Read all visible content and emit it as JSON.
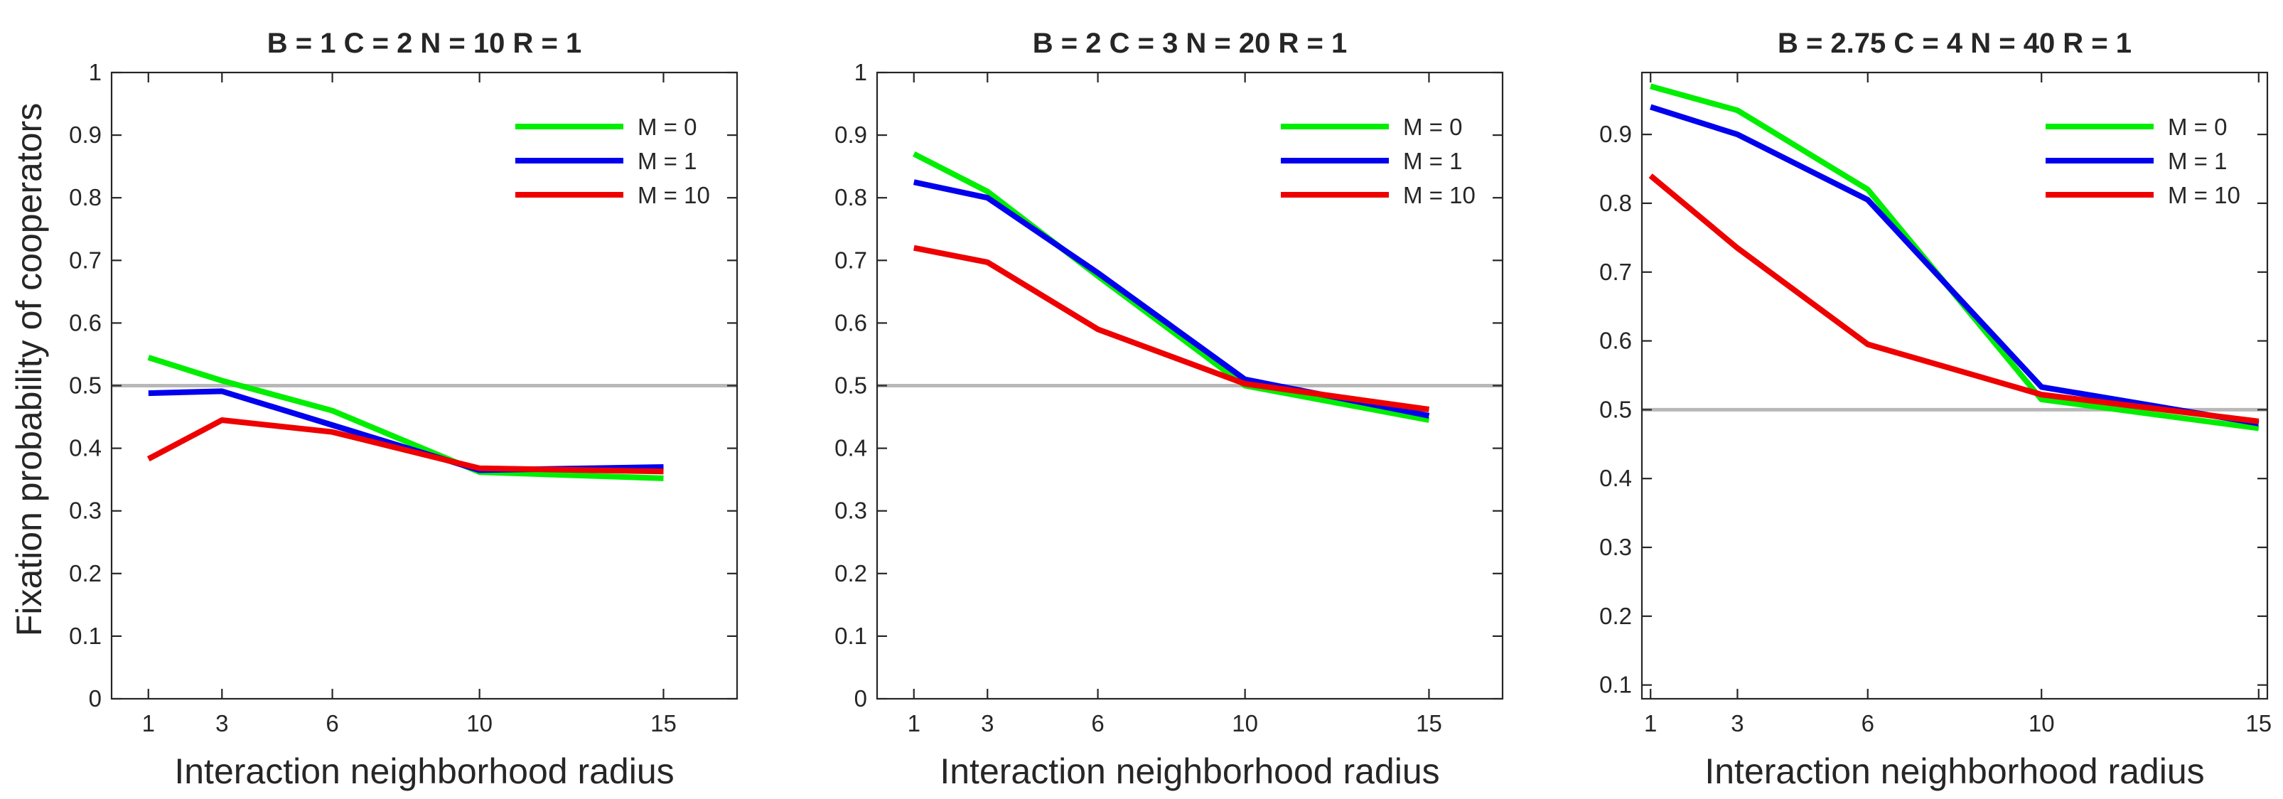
{
  "figure": {
    "ylabel": "Fixation probability of cooperators",
    "reference_line": 0.5
  },
  "chart_data": [
    {
      "type": "line",
      "title": "B = 1   C = 2   N = 10   R = 1",
      "xlabel": "Interaction neighborhood radius",
      "ylabel": "Fixation probability of cooperators",
      "xlim": [
        0,
        17
      ],
      "ylim": [
        0,
        1
      ],
      "x": [
        1,
        3,
        6,
        10,
        15
      ],
      "xticks": [
        1,
        3,
        6,
        10,
        15
      ],
      "yticks": [
        0,
        0.1,
        0.2,
        0.3,
        0.4,
        0.5,
        0.6,
        0.7,
        0.8,
        0.9,
        1
      ],
      "ytick_labels": [
        "0",
        "0.1",
        "0.2",
        "0.3",
        "0.4",
        "0.5",
        "0.6",
        "0.7",
        "0.8",
        "0.9",
        "1"
      ],
      "legend_position": "top-right",
      "series": [
        {
          "name": "M = 0",
          "color": "#00ee00",
          "values": [
            0.545,
            0.508,
            0.46,
            0.362,
            0.352
          ]
        },
        {
          "name": "M = 1",
          "color": "#0000ee",
          "values": [
            0.488,
            0.491,
            0.437,
            0.365,
            0.37
          ]
        },
        {
          "name": "M = 10",
          "color": "#ee0000",
          "values": [
            0.383,
            0.445,
            0.426,
            0.368,
            0.363
          ]
        }
      ]
    },
    {
      "type": "line",
      "title": "B = 2   C = 3   N = 20   R = 1",
      "xlabel": "Interaction neighborhood radius",
      "ylabel": "",
      "xlim": [
        0,
        17
      ],
      "ylim": [
        0,
        1
      ],
      "x": [
        1,
        3,
        6,
        10,
        15
      ],
      "xticks": [
        1,
        3,
        6,
        10,
        15
      ],
      "yticks": [
        0,
        0.1,
        0.2,
        0.3,
        0.4,
        0.5,
        0.6,
        0.7,
        0.8,
        0.9,
        1
      ],
      "ytick_labels": [
        "0",
        "0.1",
        "0.2",
        "0.3",
        "0.4",
        "0.5",
        "0.6",
        "0.7",
        "0.8",
        "0.9",
        "1"
      ],
      "legend_position": "top-right",
      "series": [
        {
          "name": "M = 0",
          "color": "#00ee00",
          "values": [
            0.87,
            0.81,
            0.675,
            0.5,
            0.445
          ]
        },
        {
          "name": "M = 1",
          "color": "#0000ee",
          "values": [
            0.825,
            0.8,
            0.68,
            0.51,
            0.452
          ]
        },
        {
          "name": "M = 10",
          "color": "#ee0000",
          "values": [
            0.72,
            0.697,
            0.59,
            0.503,
            0.462
          ]
        }
      ]
    },
    {
      "type": "line",
      "title": "B = 2.75   C = 4   N = 40   R = 1",
      "xlabel": "Interaction neighborhood radius",
      "ylabel": "",
      "xlim": [
        0.8,
        15.2
      ],
      "ylim": [
        0.08,
        0.99
      ],
      "x": [
        1,
        3,
        6,
        10,
        15
      ],
      "xticks": [
        1,
        3,
        6,
        10,
        15
      ],
      "yticks": [
        0.1,
        0.2,
        0.3,
        0.4,
        0.5,
        0.6,
        0.7,
        0.8,
        0.9
      ],
      "ytick_labels": [
        "0.1",
        "0.2",
        "0.3",
        "0.4",
        "0.5",
        "0.6",
        "0.7",
        "0.8",
        "0.9"
      ],
      "legend_position": "top-right",
      "series": [
        {
          "name": "M = 0",
          "color": "#00ee00",
          "values": [
            0.97,
            0.935,
            0.82,
            0.515,
            0.473
          ]
        },
        {
          "name": "M = 1",
          "color": "#0000ee",
          "values": [
            0.94,
            0.9,
            0.805,
            0.533,
            0.48
          ]
        },
        {
          "name": "M = 10",
          "color": "#ee0000",
          "values": [
            0.84,
            0.735,
            0.595,
            0.522,
            0.483
          ]
        }
      ]
    }
  ]
}
